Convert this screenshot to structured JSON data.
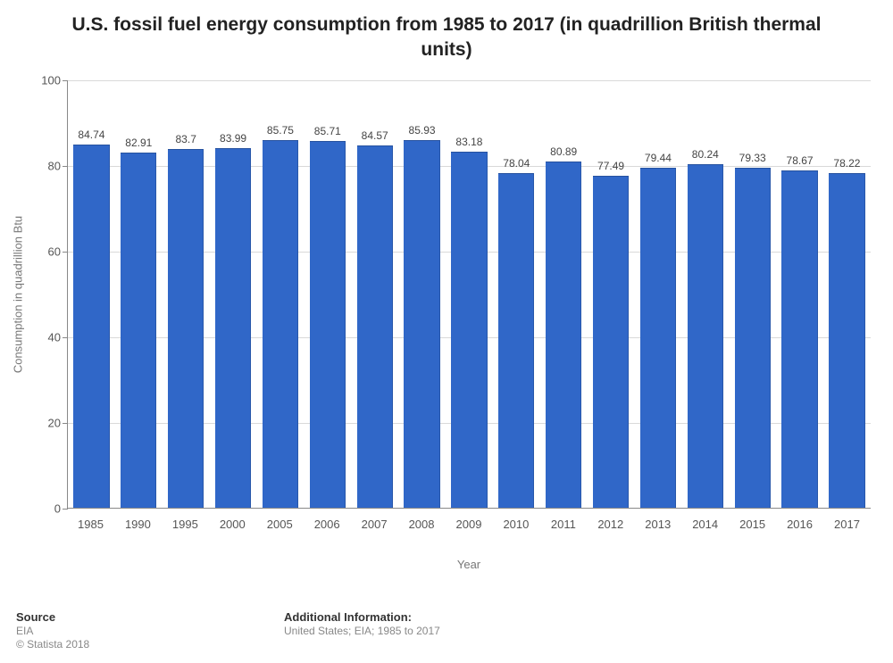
{
  "chart": {
    "type": "bar",
    "title": "U.S. fossil fuel energy consumption from 1985 to 2017 (in quadrillion British thermal units)",
    "title_fontsize": 21,
    "xlabel": "Year",
    "ylabel": "Consumption in quadrillion Btu",
    "label_fontsize": 13,
    "categories": [
      "1985",
      "1990",
      "1995",
      "2000",
      "2005",
      "2006",
      "2007",
      "2008",
      "2009",
      "2010",
      "2011",
      "2012",
      "2013",
      "2014",
      "2015",
      "2016",
      "2017"
    ],
    "values": [
      84.74,
      82.91,
      83.7,
      83.99,
      85.75,
      85.71,
      84.57,
      85.93,
      83.18,
      78.04,
      80.89,
      77.49,
      79.44,
      80.24,
      79.33,
      78.67,
      78.22
    ],
    "value_labels": [
      "84.74",
      "82.91",
      "83.7",
      "83.99",
      "85.75",
      "85.71",
      "84.57",
      "85.93",
      "83.18",
      "78.04",
      "80.89",
      "77.49",
      "79.44",
      "80.24",
      "79.33",
      "78.67",
      "78.22"
    ],
    "bar_color": "#3067c8",
    "ylim": [
      0,
      100
    ],
    "yticks": [
      0,
      20,
      40,
      60,
      80,
      100
    ],
    "grid_color": "#d9d9d9",
    "axis_color": "#888888",
    "background_color": "#ffffff",
    "tick_fontsize": 13,
    "value_label_fontsize": 12,
    "bar_width_ratio": 0.76
  },
  "footer": {
    "source_heading": "Source",
    "source_line1": "EIA",
    "source_line2": "© Statista 2018",
    "info_heading": "Additional Information:",
    "info_line1": "United States; EIA; 1985 to 2017"
  }
}
